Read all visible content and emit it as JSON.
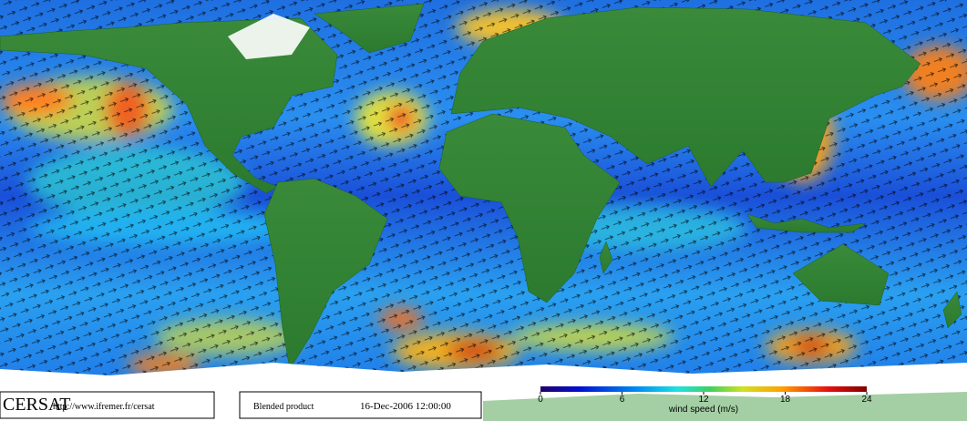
{
  "footer": {
    "logo": "CERSAT",
    "url": "http://www.ifremer.fr/cersat",
    "product": "Blended product",
    "date": "16-Dec-2006 12:00:00"
  },
  "colorbar": {
    "label": "wind speed (m/s)",
    "lim": [
      0,
      24
    ],
    "ticks": [
      0,
      6,
      12,
      18,
      24
    ]
  }
}
